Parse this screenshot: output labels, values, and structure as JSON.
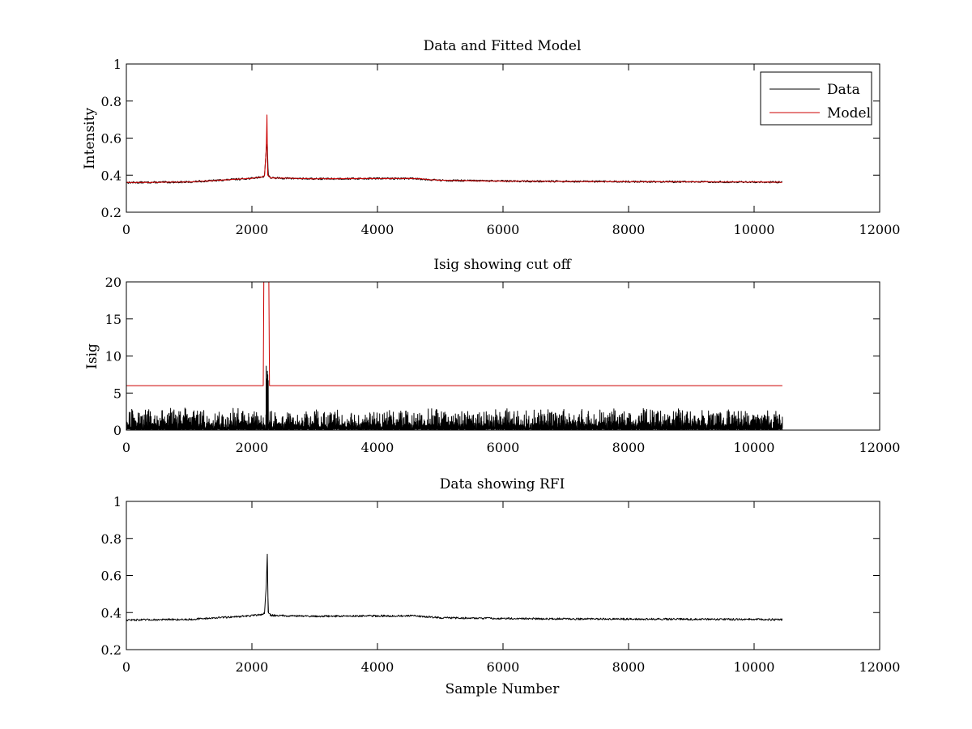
{
  "chart_data": [
    {
      "type": "line",
      "title": "Data and Fitted Model",
      "xlabel": "",
      "ylabel": "Intensity",
      "xlim": [
        0,
        12000
      ],
      "ylim": [
        0.2,
        1.0
      ],
      "xticks": [
        0,
        2000,
        4000,
        6000,
        8000,
        10000,
        12000
      ],
      "yticks": [
        0.2,
        0.4,
        0.6,
        0.8,
        1.0
      ],
      "xtick_labels": [
        "0",
        "2000",
        "4000",
        "6000",
        "8000",
        "10000",
        "12000"
      ],
      "ytick_labels": [
        "0.2",
        "0.4",
        "0.6",
        "0.8",
        "1"
      ],
      "legend": {
        "position": "top-right",
        "entries": [
          "Data",
          "Model"
        ]
      },
      "x_extent": [
        0,
        10450
      ],
      "series": [
        {
          "name": "Data",
          "color": "#000000",
          "x": [
            0,
            1000,
            2000,
            2150,
            2200,
            2230,
            2245,
            2260,
            2300,
            3000,
            3800,
            4600,
            5000,
            6000,
            7000,
            8000,
            9000,
            10000,
            10450
          ],
          "y": [
            0.36,
            0.363,
            0.383,
            0.39,
            0.395,
            0.55,
            0.57,
            0.4,
            0.385,
            0.38,
            0.382,
            0.382,
            0.372,
            0.368,
            0.366,
            0.365,
            0.364,
            0.363,
            0.362
          ],
          "noise": 0.005
        },
        {
          "name": "Model",
          "color": "#cc0000",
          "x": [
            0,
            1000,
            2000,
            2150,
            2200,
            2230,
            2240,
            2250,
            2300,
            3000,
            3800,
            4600,
            5000,
            6000,
            7000,
            8000,
            9000,
            10000,
            10450
          ],
          "y": [
            0.36,
            0.363,
            0.383,
            0.39,
            0.395,
            0.55,
            0.725,
            0.4,
            0.385,
            0.38,
            0.382,
            0.382,
            0.372,
            0.368,
            0.366,
            0.365,
            0.364,
            0.363,
            0.362
          ],
          "noise": 0.002
        }
      ]
    },
    {
      "type": "line",
      "title": "Isig showing cut off",
      "xlabel": "",
      "ylabel": "Isig",
      "xlim": [
        0,
        12000
      ],
      "ylim": [
        0,
        20
      ],
      "xticks": [
        0,
        2000,
        4000,
        6000,
        8000,
        10000,
        12000
      ],
      "yticks": [
        0,
        5,
        10,
        15,
        20
      ],
      "xtick_labels": [
        "0",
        "2000",
        "4000",
        "6000",
        "8000",
        "10000",
        "12000"
      ],
      "ytick_labels": [
        "0",
        "5",
        "10",
        "15",
        "20"
      ],
      "x_extent": [
        0,
        10450
      ],
      "series": [
        {
          "color": "#000000",
          "kind": "noise",
          "base": 0.9,
          "spread": 2.2,
          "spike": {
            "x": 2240,
            "y": 9.2
          }
        },
        {
          "color": "#cc0000",
          "x": [
            0,
            2180,
            2190,
            2270,
            2280,
            10450
          ],
          "y": [
            6,
            6,
            20,
            20,
            6,
            6
          ]
        }
      ]
    },
    {
      "type": "line",
      "title": "Data showing RFI",
      "xlabel": "Sample Number",
      "ylabel": "",
      "xlim": [
        0,
        12000
      ],
      "ylim": [
        0.2,
        1.0
      ],
      "xticks": [
        0,
        2000,
        4000,
        6000,
        8000,
        10000,
        12000
      ],
      "yticks": [
        0.2,
        0.4,
        0.6,
        0.8,
        1.0
      ],
      "xtick_labels": [
        "0",
        "2000",
        "4000",
        "6000",
        "8000",
        "10000",
        "12000"
      ],
      "ytick_labels": [
        "0.2",
        "0.4",
        "0.6",
        "0.8",
        "1"
      ],
      "x_extent": [
        0,
        10450
      ],
      "series": [
        {
          "color": "#000000",
          "x": [
            0,
            1000,
            2000,
            2150,
            2200,
            2230,
            2245,
            2260,
            2300,
            3000,
            3800,
            4600,
            5000,
            6000,
            7000,
            8000,
            9000,
            10000,
            10450
          ],
          "y": [
            0.36,
            0.363,
            0.383,
            0.39,
            0.395,
            0.55,
            0.715,
            0.4,
            0.385,
            0.38,
            0.382,
            0.382,
            0.372,
            0.368,
            0.366,
            0.365,
            0.364,
            0.363,
            0.362
          ],
          "noise": 0.005
        }
      ]
    }
  ]
}
